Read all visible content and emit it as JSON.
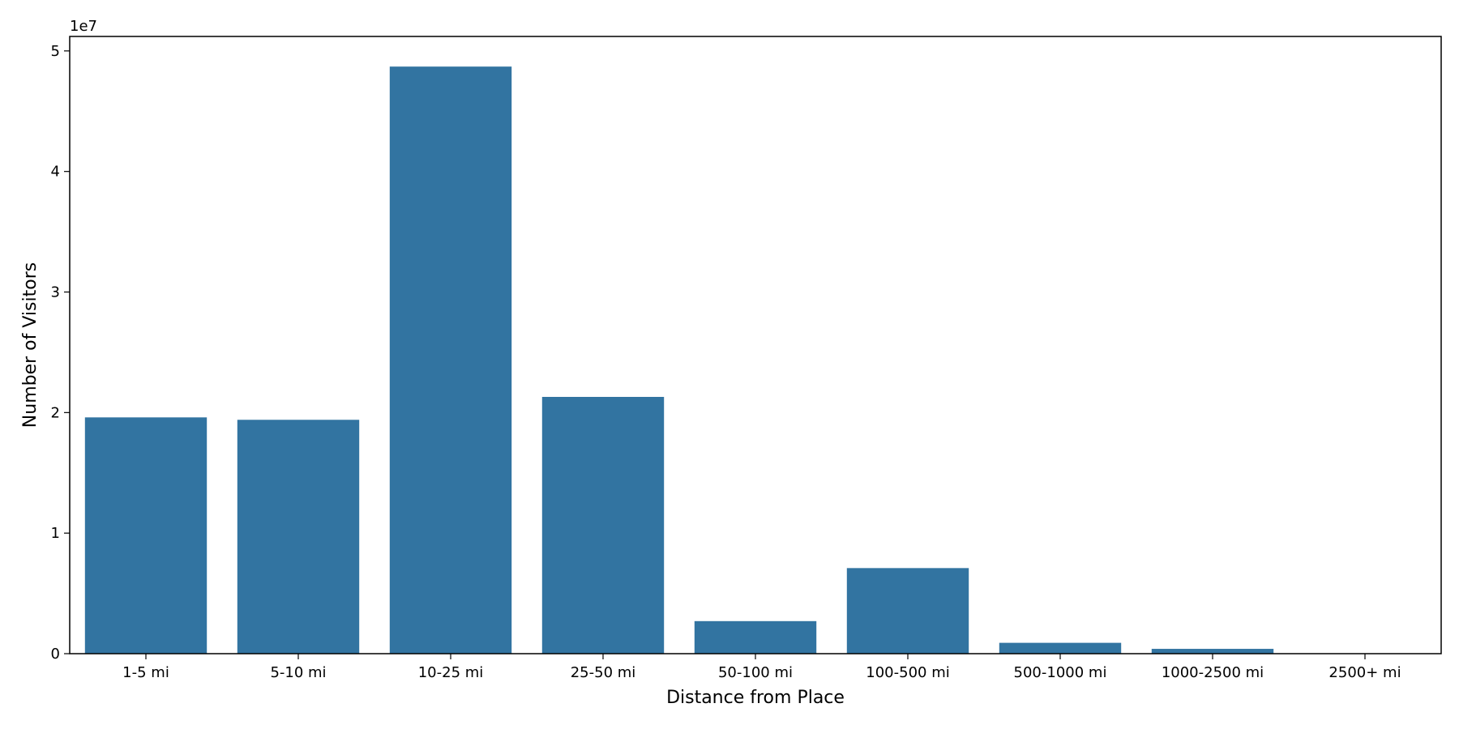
{
  "chart_data": {
    "type": "bar",
    "xlabel": "Distance from Place",
    "ylabel": "Number of Visitors",
    "y_offset_label": "1e7",
    "ylim": [
      0,
      5.12
    ],
    "yticks": [
      0,
      1,
      2,
      3,
      4,
      5
    ],
    "ytick_labels": [
      "0",
      "1",
      "2",
      "3",
      "4",
      "5"
    ],
    "categories": [
      "1-5 mi",
      "5-10 mi",
      "10-25 mi",
      "25-50 mi",
      "50-100 mi",
      "100-500 mi",
      "500-1000 mi",
      "1000-2500 mi",
      "2500+ mi"
    ],
    "values": [
      1.96,
      1.94,
      4.87,
      2.13,
      0.27,
      0.71,
      0.09,
      0.04,
      0.0
    ],
    "bar_color": "#3274a1",
    "grid": false,
    "legend": "none"
  }
}
